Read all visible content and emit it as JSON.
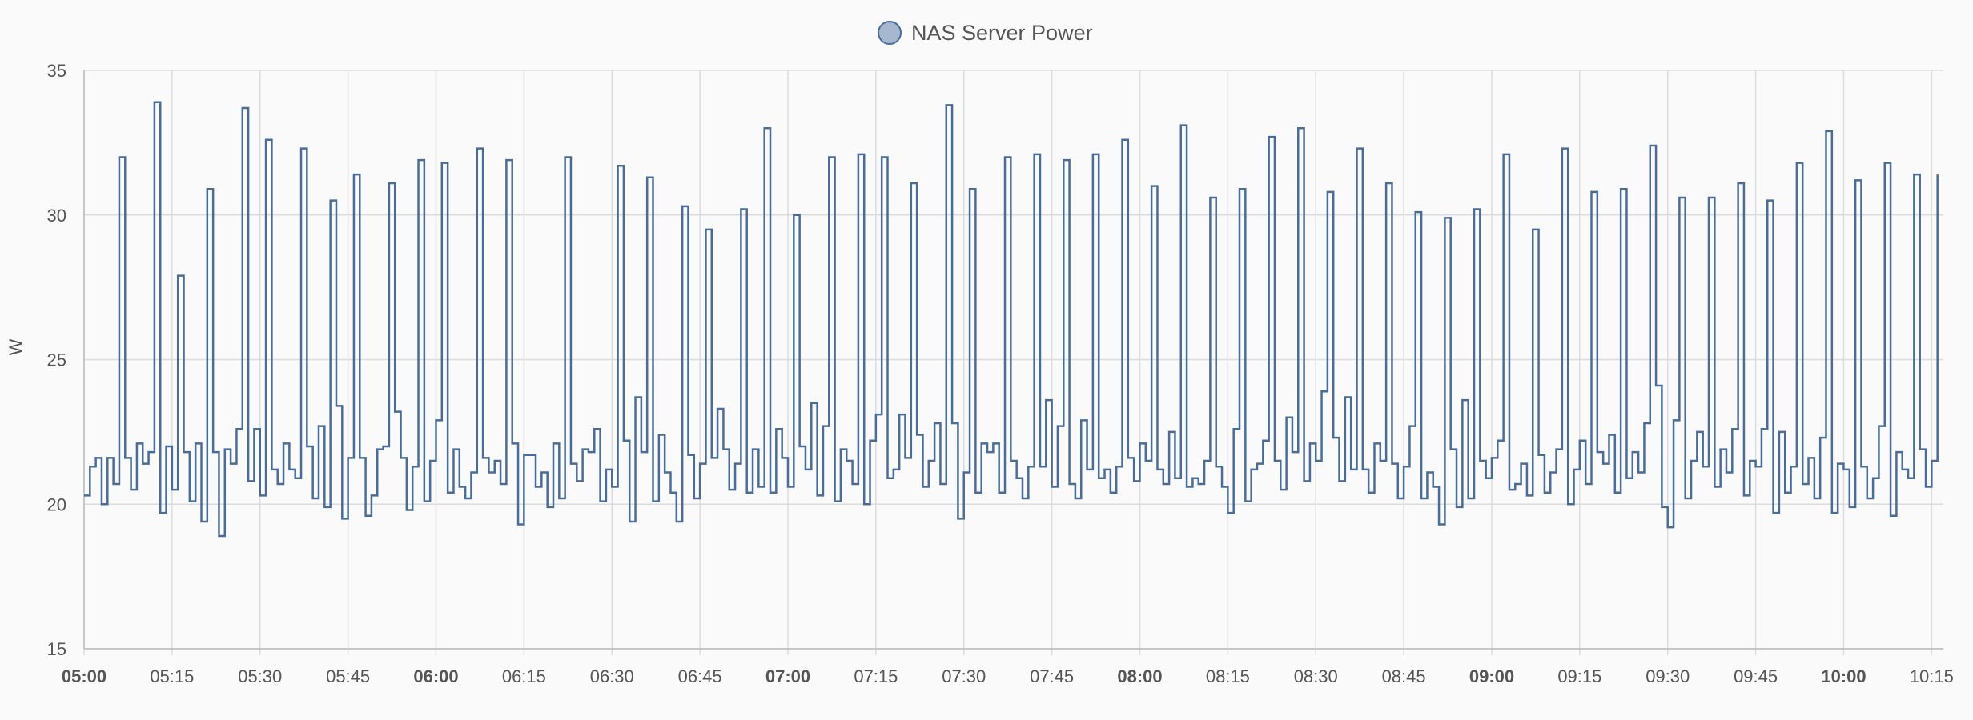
{
  "chart_data": {
    "type": "line",
    "step": true,
    "ylabel": "W",
    "grid": true,
    "legend_position": "top",
    "series": [
      {
        "name": "NAS Server Power",
        "color": "#4a6d98",
        "legend_fill": "#a6b7cf",
        "values": [
          20.3,
          21.3,
          21.6,
          20,
          21.6,
          20.7,
          32,
          21.6,
          20.5,
          22.1,
          21.4,
          21.8,
          33.9,
          19.7,
          22,
          20.5,
          27.9,
          21.8,
          20.1,
          22.1,
          19.4,
          30.9,
          21.8,
          18.9,
          21.9,
          21.4,
          22.6,
          33.7,
          20.8,
          22.6,
          20.3,
          32.6,
          21.2,
          20.7,
          22.1,
          21.2,
          20.9,
          32.3,
          22,
          20.2,
          22.7,
          19.9,
          30.5,
          23.4,
          19.5,
          21.6,
          31.4,
          21.6,
          19.6,
          20.3,
          21.9,
          22,
          31.1,
          23.2,
          21.6,
          19.8,
          21.3,
          31.9,
          20.1,
          21.5,
          22.9,
          31.8,
          20.4,
          21.9,
          20.6,
          20.2,
          21.1,
          32.3,
          21.6,
          21.1,
          21.5,
          20.7,
          31.9,
          22.1,
          19.3,
          21.7,
          21.7,
          20.6,
          21.1,
          19.9,
          22.1,
          20.2,
          32,
          21.4,
          20.8,
          21.9,
          21.8,
          22.6,
          20.1,
          21.2,
          20.6,
          31.7,
          22.2,
          19.4,
          23.7,
          21.8,
          31.3,
          20.1,
          22.4,
          21.1,
          20.4,
          19.4,
          30.3,
          21.7,
          20.2,
          21.4,
          29.5,
          21.6,
          23.3,
          21.9,
          20.5,
          21.4,
          30.2,
          20.4,
          21.9,
          20.6,
          33,
          20.4,
          22.6,
          21.6,
          20.6,
          30,
          22,
          21.2,
          23.5,
          20.3,
          22.7,
          32,
          20.1,
          21.9,
          21.5,
          20.7,
          32.1,
          20,
          22.2,
          23.1,
          32,
          20.9,
          21.2,
          23.1,
          21.6,
          31.1,
          22.4,
          20.6,
          21.5,
          22.8,
          20.7,
          33.8,
          22.8,
          19.5,
          21.1,
          30.9,
          20.4,
          22.1,
          21.8,
          22.1,
          20.4,
          32,
          21.5,
          20.9,
          20.2,
          21.3,
          32.1,
          21.3,
          23.6,
          20.6,
          22.7,
          31.9,
          20.7,
          20.2,
          22.9,
          21.2,
          32.1,
          20.9,
          21.2,
          20.4,
          21.3,
          32.6,
          21.6,
          20.8,
          22.1,
          21.5,
          31,
          21.2,
          20.7,
          22.5,
          20.9,
          33.1,
          20.6,
          20.9,
          20.7,
          21.5,
          30.6,
          21.3,
          20.6,
          19.7,
          22.6,
          30.9,
          20.1,
          21.2,
          21.4,
          22.2,
          32.7,
          21.5,
          20.5,
          23,
          21.8,
          33,
          20.8,
          22.1,
          21.5,
          23.9,
          30.8,
          22.3,
          20.8,
          23.7,
          21.2,
          32.3,
          21.2,
          20.4,
          22.1,
          21.5,
          31.1,
          21.4,
          20.2,
          21.3,
          22.7,
          30.1,
          20.2,
          21.1,
          20.6,
          19.3,
          29.9,
          21.9,
          19.9,
          23.6,
          20.2,
          30.2,
          21.5,
          20.9,
          21.6,
          22.2,
          32.1,
          20.5,
          20.7,
          21.4,
          20.3,
          29.5,
          21.7,
          20.4,
          21.1,
          21.9,
          32.3,
          20,
          21.2,
          22.2,
          20.7,
          30.8,
          21.8,
          21.4,
          22.4,
          20.4,
          30.9,
          20.9,
          21.8,
          21.1,
          22.8,
          32.4,
          24.1,
          19.9,
          19.2,
          22.9,
          30.6,
          20.2,
          21.5,
          22.5,
          21.3,
          30.6,
          20.6,
          21.9,
          21.1,
          22.6,
          31.1,
          20.3,
          21.5,
          21.3,
          22.6,
          30.5,
          19.7,
          22.5,
          20.4,
          21.3,
          31.8,
          20.7,
          21.6,
          20.2,
          22.3,
          32.9,
          19.7,
          21.4,
          21.2,
          19.9,
          31.2,
          21.3,
          20.2,
          20.9,
          22.7,
          31.8,
          19.6,
          21.8,
          21.2,
          20.9,
          31.4,
          21.9,
          20.6,
          21.5,
          31.4
        ]
      }
    ],
    "x": [
      "05:00",
      "05:01",
      "05:02",
      "05:03",
      "05:04",
      "05:05",
      "05:06",
      "05:07",
      "05:08",
      "05:09",
      "05:10",
      "05:11",
      "05:12",
      "05:13",
      "05:14",
      "05:15",
      "05:16",
      "05:17",
      "05:18",
      "05:19",
      "05:20",
      "05:21",
      "05:22",
      "05:23",
      "05:24",
      "05:25",
      "05:26",
      "05:27",
      "05:28",
      "05:29",
      "05:30",
      "05:31",
      "05:32",
      "05:33",
      "05:34",
      "05:35",
      "05:36",
      "05:37",
      "05:38",
      "05:39",
      "05:40",
      "05:41",
      "05:42",
      "05:43",
      "05:44",
      "05:45",
      "05:46",
      "05:47",
      "05:48",
      "05:49",
      "05:50",
      "05:51",
      "05:52",
      "05:53",
      "05:54",
      "05:55",
      "05:56",
      "05:57",
      "05:58",
      "05:59",
      "06:00",
      "06:01",
      "06:02",
      "06:03",
      "06:04",
      "06:05",
      "06:06",
      "06:07",
      "06:08",
      "06:09",
      "06:10",
      "06:11",
      "06:12",
      "06:13",
      "06:14",
      "06:15",
      "06:16",
      "06:17",
      "06:18",
      "06:19",
      "06:20",
      "06:21",
      "06:22",
      "06:23",
      "06:24",
      "06:25",
      "06:26",
      "06:27",
      "06:28",
      "06:29",
      "06:30",
      "06:31",
      "06:32",
      "06:33",
      "06:34",
      "06:35",
      "06:36",
      "06:37",
      "06:38",
      "06:39",
      "06:40",
      "06:41",
      "06:42",
      "06:43",
      "06:44",
      "06:45",
      "06:46",
      "06:47",
      "06:48",
      "06:49",
      "06:50",
      "06:51",
      "06:52",
      "06:53",
      "06:54",
      "06:55",
      "06:56",
      "06:57",
      "06:58",
      "06:59",
      "07:00",
      "07:01",
      "07:02",
      "07:03",
      "07:04",
      "07:05",
      "07:06",
      "07:07",
      "07:08",
      "07:09",
      "07:10",
      "07:11",
      "07:12",
      "07:13",
      "07:14",
      "07:15",
      "07:16",
      "07:17",
      "07:18",
      "07:19",
      "07:20",
      "07:21",
      "07:22",
      "07:23",
      "07:24",
      "07:25",
      "07:26",
      "07:27",
      "07:28",
      "07:29",
      "07:30",
      "07:31",
      "07:32",
      "07:33",
      "07:34",
      "07:35",
      "07:36",
      "07:37",
      "07:38",
      "07:39",
      "07:40",
      "07:41",
      "07:42",
      "07:43",
      "07:44",
      "07:45",
      "07:46",
      "07:47",
      "07:48",
      "07:49",
      "07:50",
      "07:51",
      "07:52",
      "07:53",
      "07:54",
      "07:55",
      "07:56",
      "07:57",
      "07:58",
      "07:59",
      "08:00",
      "08:01",
      "08:02",
      "08:03",
      "08:04",
      "08:05",
      "08:06",
      "08:07",
      "08:08",
      "08:09",
      "08:10",
      "08:11",
      "08:12",
      "08:13",
      "08:14",
      "08:15",
      "08:16",
      "08:17",
      "08:18",
      "08:19",
      "08:20",
      "08:21",
      "08:22",
      "08:23",
      "08:24",
      "08:25",
      "08:26",
      "08:27",
      "08:28",
      "08:29",
      "08:30",
      "08:31",
      "08:32",
      "08:33",
      "08:34",
      "08:35",
      "08:36",
      "08:37",
      "08:38",
      "08:39",
      "08:40",
      "08:41",
      "08:42",
      "08:43",
      "08:44",
      "08:45",
      "08:46",
      "08:47",
      "08:48",
      "08:49",
      "08:50",
      "08:51",
      "08:52",
      "08:53",
      "08:54",
      "08:55",
      "08:56",
      "08:57",
      "08:58",
      "08:59",
      "09:00",
      "09:01",
      "09:02",
      "09:03",
      "09:04",
      "09:05",
      "09:06",
      "09:07",
      "09:08",
      "09:09",
      "09:10",
      "09:11",
      "09:12",
      "09:13",
      "09:14",
      "09:15",
      "09:16",
      "09:17",
      "09:18",
      "09:19",
      "09:20",
      "09:21",
      "09:22",
      "09:23",
      "09:24",
      "09:25",
      "09:26",
      "09:27",
      "09:28",
      "09:29",
      "09:30",
      "09:31",
      "09:32",
      "09:33",
      "09:34",
      "09:35",
      "09:36",
      "09:37",
      "09:38",
      "09:39",
      "09:40",
      "09:41",
      "09:42",
      "09:43",
      "09:44",
      "09:45",
      "09:46",
      "09:47",
      "09:48",
      "09:49",
      "09:50",
      "09:51",
      "09:52",
      "09:53",
      "09:54",
      "09:55",
      "09:56",
      "09:57",
      "09:58",
      "09:59",
      "10:00",
      "10:01",
      "10:02",
      "10:03",
      "10:04",
      "10:05",
      "10:06",
      "10:07",
      "10:08",
      "10:09",
      "10:10",
      "10:11",
      "10:12",
      "10:13",
      "10:14",
      "10:15",
      "10:16"
    ],
    "xlim": [
      "05:00",
      "10:17"
    ],
    "xticks": [
      "05:00",
      "05:15",
      "05:30",
      "05:45",
      "06:00",
      "06:15",
      "06:30",
      "06:45",
      "07:00",
      "07:15",
      "07:30",
      "07:45",
      "08:00",
      "08:15",
      "08:30",
      "08:45",
      "09:00",
      "09:15",
      "09:30",
      "09:45",
      "10:00",
      "10:15"
    ],
    "ylim": [
      15,
      35
    ],
    "yticks": [
      15,
      20,
      25,
      30,
      35
    ]
  }
}
